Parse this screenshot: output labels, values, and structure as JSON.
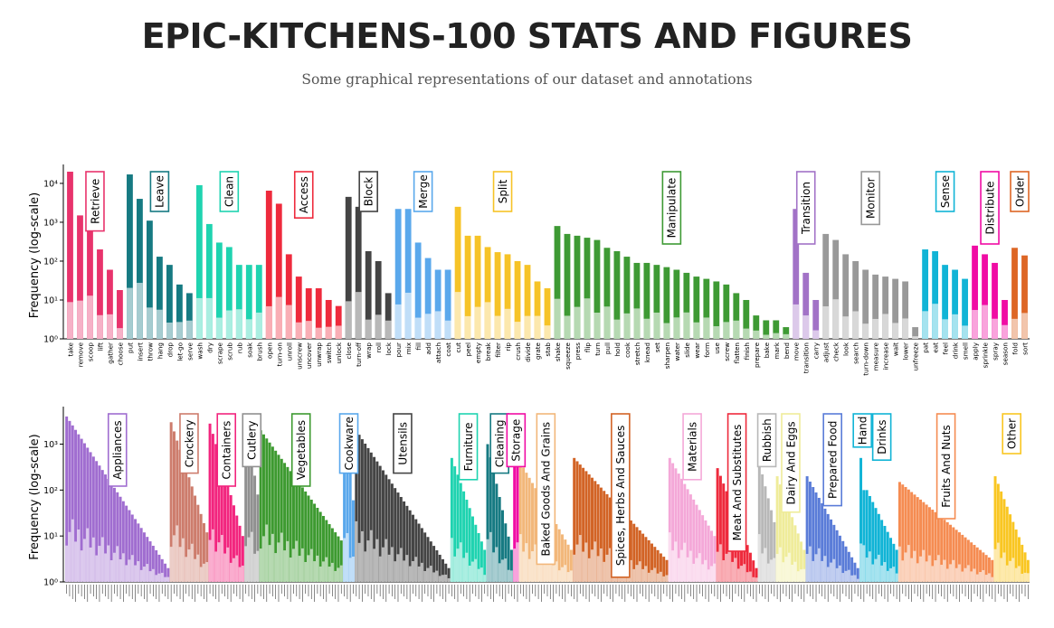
{
  "page": {
    "title": "EPIC-KITCHENS-100 STATS AND FIGURES",
    "subtitle": "Some graphical representations of our dataset and annotations"
  },
  "chart_data": [
    {
      "type": "bar",
      "name": "verb-classes",
      "ylabel": "Frequency (log-scale)",
      "yscale": "log",
      "ylim": [
        1,
        20000
      ],
      "yticks": [
        "10⁰",
        "10¹",
        "10²",
        "10³",
        "10⁴"
      ],
      "yticks_values": [
        1,
        10,
        100,
        1000,
        10000
      ],
      "groups": [
        {
          "name": "Retrieve",
          "color": "#e8336c",
          "categories": [
            "take",
            "remove",
            "scoop",
            "lift",
            "gather",
            "choose"
          ],
          "values": [
            20000,
            1500,
            600,
            200,
            60,
            18
          ]
        },
        {
          "name": "Leave",
          "color": "#167a82",
          "categories": [
            "put",
            "insert",
            "throw",
            "hang",
            "drop",
            "let-go",
            "serve"
          ],
          "values": [
            17000,
            4000,
            1100,
            130,
            80,
            25,
            15
          ]
        },
        {
          "name": "Clean",
          "color": "#1fd3b0",
          "categories": [
            "wash",
            "dry",
            "scrape",
            "scrub",
            "rub",
            "soak",
            "brush"
          ],
          "values": [
            9000,
            900,
            300,
            230,
            80,
            80,
            80
          ]
        },
        {
          "name": "Access",
          "color": "#ee2a3c",
          "categories": [
            "open",
            "turn-on",
            "unroll",
            "unscrew",
            "uncover",
            "unwrap",
            "switch",
            "unlock"
          ],
          "values": [
            6500,
            3000,
            150,
            40,
            20,
            20,
            10,
            7
          ]
        },
        {
          "name": "Block",
          "color": "#444444",
          "categories": [
            "close",
            "turn-off",
            "wrap",
            "roll",
            "lock"
          ],
          "values": [
            4500,
            2500,
            180,
            100,
            15
          ]
        },
        {
          "name": "Merge",
          "color": "#5aa8ec",
          "categories": [
            "pour",
            "mix",
            "fill",
            "add",
            "attach",
            "coat"
          ],
          "values": [
            2200,
            2200,
            300,
            120,
            60,
            60
          ]
        },
        {
          "name": "Split",
          "color": "#f6c327",
          "categories": [
            "cut",
            "peel",
            "empty",
            "break",
            "filter",
            "rip",
            "crush",
            "divide",
            "grate",
            "stab"
          ],
          "values": [
            2500,
            450,
            450,
            230,
            170,
            150,
            100,
            80,
            30,
            20
          ]
        },
        {
          "name": "Manipulate",
          "color": "#3e9a34",
          "categories": [
            "shake",
            "squeeze",
            "press",
            "flip",
            "turn",
            "pull",
            "hold",
            "cook",
            "stretch",
            "knead",
            "set",
            "sharpen",
            "water",
            "slide",
            "wear",
            "form",
            "use",
            "screw",
            "flatten",
            "finish",
            "prepare",
            "bake",
            "mark",
            "bend"
          ],
          "values": [
            800,
            500,
            450,
            400,
            350,
            220,
            180,
            130,
            90,
            90,
            80,
            70,
            60,
            50,
            40,
            35,
            30,
            25,
            15,
            10,
            4,
            3,
            3,
            2
          ]
        },
        {
          "name": "Transition",
          "color": "#a272c7",
          "categories": [
            "move",
            "transition",
            "carry"
          ],
          "values": [
            2200,
            50,
            10
          ]
        },
        {
          "name": "Monitor",
          "color": "#999999",
          "categories": [
            "adjust",
            "check",
            "look",
            "search",
            "turn-down",
            "measure",
            "increase",
            "wait",
            "lower",
            "unfreeze"
          ],
          "values": [
            500,
            350,
            150,
            100,
            60,
            45,
            40,
            35,
            30,
            2
          ]
        },
        {
          "name": "Sense",
          "color": "#11b4d6",
          "categories": [
            "pat",
            "eat",
            "feel",
            "drink",
            "smell"
          ],
          "values": [
            200,
            180,
            80,
            60,
            35
          ]
        },
        {
          "name": "Distribute",
          "color": "#f00ca4",
          "categories": [
            "apply",
            "sprinkle",
            "spray",
            "season"
          ],
          "values": [
            250,
            150,
            90,
            10
          ]
        },
        {
          "name": "Order",
          "color": "#dd6625",
          "categories": [
            "fold",
            "sort"
          ],
          "values": [
            220,
            140
          ]
        }
      ]
    },
    {
      "type": "bar",
      "name": "noun-classes",
      "ylabel": "Frequency (log-scale)",
      "yscale": "log",
      "ylim": [
        1,
        5000
      ],
      "yticks": [
        "10⁰",
        "10¹",
        "10²",
        "10³"
      ],
      "yticks_values": [
        1,
        10,
        100,
        1000
      ],
      "groups": [
        {
          "name": "Appliances",
          "color": "#a06dd0",
          "n": 35,
          "start": 4000,
          "end": 2
        },
        {
          "name": "Crockery",
          "color": "#cd7c6c",
          "n": 13,
          "start": 3000,
          "end": 12
        },
        {
          "name": "Containers",
          "color": "#f2257e",
          "n": 12,
          "start": 2800,
          "end": 10
        },
        {
          "name": "Cutlery",
          "color": "#909090",
          "n": 5,
          "start": 3500,
          "end": 80
        },
        {
          "name": "Vegetables",
          "color": "#3d9a30",
          "n": 28,
          "start": 2000,
          "end": 8
        },
        {
          "name": "Cookware",
          "color": "#5aa8ec",
          "n": 4,
          "start": 4000,
          "end": 60
        },
        {
          "name": "Utensils",
          "color": "#444444",
          "n": 32,
          "start": 2000,
          "end": 2
        },
        {
          "name": "Furniture",
          "color": "#1fd3b0",
          "n": 12,
          "start": 500,
          "end": 5
        },
        {
          "name": "Cleaning",
          "color": "#167a82",
          "n": 9,
          "start": 1000,
          "end": 5
        },
        {
          "name": "Storage",
          "color": "#f00ca4",
          "n": 2,
          "start": 2000,
          "end": 600
        },
        {
          "name": "Baked Goods And Grains",
          "color": "#f2b77a",
          "n": 18,
          "start": 400,
          "end": 5
        },
        {
          "name": "Spices, Herbs And Sauces",
          "color": "#d26325",
          "n": 32,
          "start": 500,
          "end": 3
        },
        {
          "name": "Materials",
          "color": "#f4a8d8",
          "n": 16,
          "start": 500,
          "end": 10
        },
        {
          "name": "Meat And Substitutes",
          "color": "#ee2a3c",
          "n": 14,
          "start": 300,
          "end": 2
        },
        {
          "name": "Rubbish",
          "color": "#b8b8b8",
          "n": 6,
          "start": 400,
          "end": 20
        },
        {
          "name": "Dairy And Eggs",
          "color": "#efec9a",
          "n": 10,
          "start": 200,
          "end": 5
        },
        {
          "name": "Prepared Food",
          "color": "#5a7cd8",
          "n": 18,
          "start": 200,
          "end": 2
        },
        {
          "name": "Hand",
          "color": "#11b4d6",
          "n": 2,
          "start": 500,
          "end": 100
        },
        {
          "name": "Drinks",
          "color": "#11b4d6",
          "n": 11,
          "start": 100,
          "end": 5
        },
        {
          "name": "Fruits And Nuts",
          "color": "#f58c52",
          "n": 32,
          "start": 150,
          "end": 3
        },
        {
          "name": "Other",
          "color": "#f9c622",
          "n": 12,
          "start": 200,
          "end": 3
        }
      ]
    }
  ]
}
